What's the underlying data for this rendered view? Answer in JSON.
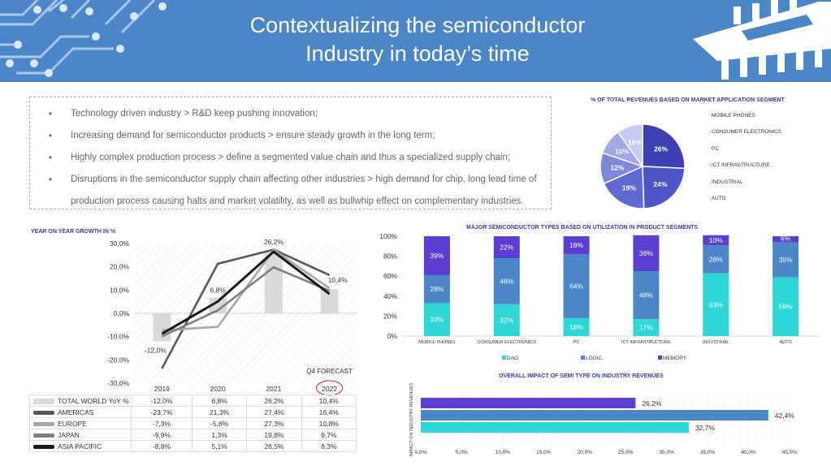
{
  "header": {
    "title_line1": "Contextualizing the semiconductor",
    "title_line2": "Industry in today’s time",
    "color": "#4a86c8"
  },
  "bullets": [
    "Technology driven industry > R&D keep pushing innovation;",
    "Increasing demand for semiconductor products > ensure steady growth in the long term;",
    "Highly complex production process > define a segmented value chain and thus a specialized supply chain;",
    "Disruptions in the semiconductor supply chain affecting other industries > high demand for chip, long lead time of",
    "production process causing halts and market volatility, as well as bullwhip effect on complementary industries."
  ],
  "chart_data": [
    {
      "type": "pie",
      "title": "% OF TOTAL REVENUES BASED ON MARKET APPLICATION SEGMENT",
      "categories": [
        "MOBILE PHONES",
        "CONSUMER ELECTRONICS",
        "PC",
        "ICT INFRASTRUCTURE",
        "INDUSTRIAL",
        "AUTO"
      ],
      "values": [
        26,
        24,
        19,
        12,
        10,
        10
      ],
      "labels": [
        "26%",
        "24%",
        "19%",
        "12%",
        "10%",
        "10%"
      ],
      "colors": [
        "#3f3fb5",
        "#4d56c7",
        "#6068d2",
        "#8088dc",
        "#a3a9e6",
        "#c6caf0"
      ],
      "legend": "right"
    },
    {
      "type": "line",
      "title": "YEAR ON YEAR GROWTH IN %",
      "categories": [
        "2019",
        "2020",
        "2021",
        "2022"
      ],
      "forecast_note": "Q4 FORECAST",
      "y_ticks": [
        "30,0%",
        "20,0%",
        "10,0%",
        "0,0%",
        "-10,0%",
        "-20,0%",
        "-30,0%"
      ],
      "ylim": [
        -30,
        30
      ],
      "bar_series": {
        "name": "TOTAL WORLD YoY %",
        "values": [
          -12.0,
          6.8,
          26.2,
          10.4
        ],
        "labels": [
          "-12,0%",
          "6,8%",
          "26,2%",
          "10,4%"
        ],
        "color": "#d9d9d9"
      },
      "series": [
        {
          "name": "AMERICAS",
          "values": [
            -23.7,
            21.3,
            27.4,
            16.4
          ],
          "labels": [
            "-23,7%",
            "21,3%",
            "27,4%",
            "16,4%"
          ],
          "color": "#595959"
        },
        {
          "name": "EUROPE",
          "values": [
            -7.3,
            -5.8,
            27.3,
            10.8
          ],
          "labels": [
            "-7,3%",
            "-5,8%",
            "27,3%",
            "10,8%"
          ],
          "color": "#a6a6a6"
        },
        {
          "name": "JAPAN",
          "values": [
            -9.9,
            1.3,
            19.8,
            9.7
          ],
          "labels": [
            "-9,9%",
            "1,3%",
            "19,8%",
            "9,7%"
          ],
          "color": "#7f7f7f"
        },
        {
          "name": "ASIA PACIFIC",
          "values": [
            -8.8,
            5.1,
            26.5,
            8.3
          ],
          "labels": [
            "-8,8%",
            "5,1%",
            "26,5%",
            "8,3%"
          ],
          "color": "#1a1a1a"
        }
      ]
    },
    {
      "type": "bar",
      "title": "MAJOR SEMICONDUCTOR TYPES BASED ON UTILIZATION IN PRODUCT SEGMENTS",
      "categories": [
        "MOBILE PHONES",
        "CONSUMER ELECTRONICS",
        "PC",
        "ICT INFRASTRUCTURE",
        "INDUSTRIAL",
        "AUTO"
      ],
      "stacked": true,
      "y_ticks": [
        "100%",
        "80%",
        "60%",
        "40%",
        "20%",
        "0%"
      ],
      "series": [
        {
          "name": "DAO",
          "values": [
            33,
            32,
            18,
            17,
            63,
            59
          ],
          "labels": [
            "33%",
            "32%",
            "18%",
            "17%",
            "63%",
            "59%"
          ],
          "color": "#2fd6d6"
        },
        {
          "name": "LOGIC",
          "values": [
            28,
            46,
            64,
            48,
            28,
            35
          ],
          "labels": [
            "28%",
            "46%",
            "64%",
            "48%",
            "28%",
            "35%"
          ],
          "color": "#4a86c8"
        },
        {
          "name": "MEMORY",
          "values": [
            39,
            22,
            18,
            36,
            10,
            6
          ],
          "labels": [
            "39%",
            "22%",
            "18%",
            "36%",
            "10%",
            "6%"
          ],
          "color": "#5a3fd0"
        }
      ],
      "legend": "bottom"
    },
    {
      "type": "bar",
      "orientation": "horizontal",
      "title": "OVERALL IMPACT OF SEMI TYPE ON INDUSTRY REVENUES",
      "ylabel": "IMPACT ON INDUSTRY REVENUES",
      "x_ticks": [
        "0,0%",
        "5,0%",
        "10,0%",
        "15,0%",
        "20,0%",
        "25,0%",
        "30,0%",
        "35,0%",
        "40,0%",
        "45,0%"
      ],
      "xlim": [
        0,
        45
      ],
      "values": [
        26.2,
        42.4,
        32.7
      ],
      "labels": [
        "26,2%",
        "42,4%",
        "32,7%"
      ],
      "colors": [
        "#5a3fd0",
        "#4a86c8",
        "#2fd6d6"
      ]
    }
  ]
}
